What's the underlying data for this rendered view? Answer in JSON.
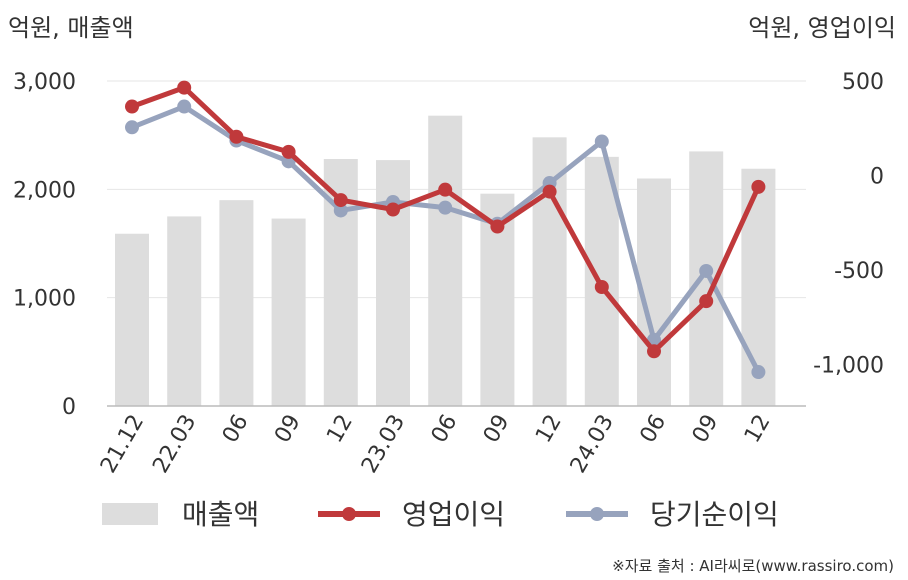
{
  "chart_data": {
    "type": "bar+line",
    "categories": [
      "21.12",
      "22.03",
      "06",
      "09",
      "12",
      "23.03",
      "06",
      "09",
      "12",
      "24.03",
      "06",
      "09",
      "12"
    ],
    "left_axis": {
      "unit_label": "억원, 매출액",
      "ticks": [
        "3,000",
        "2,000",
        "1,000",
        "0"
      ],
      "tick_values": [
        3000,
        2000,
        1000,
        0
      ],
      "range": [
        0,
        3000
      ]
    },
    "right_axis": {
      "unit_label": "억원, 영업이익",
      "ticks": [
        "500",
        "0",
        "-500",
        "-1,000"
      ],
      "tick_values": [
        500,
        0,
        -500,
        -1000
      ],
      "range": [
        -1200,
        500
      ]
    },
    "series": [
      {
        "name": "매출액",
        "type": "bar",
        "axis": "left",
        "color": "#dddddd",
        "values": [
          1590,
          1750,
          1900,
          1730,
          2280,
          2270,
          2680,
          1960,
          2480,
          2300,
          2100,
          2350,
          2190
        ]
      },
      {
        "name": "영업이익",
        "type": "line",
        "axis": "right",
        "color": "#c0393b",
        "values": [
          365,
          465,
          205,
          125,
          -130,
          -180,
          -75,
          -270,
          -85,
          -590,
          -930,
          -665,
          -60
        ]
      },
      {
        "name": "당기순이익",
        "type": "line",
        "axis": "right",
        "color": "#97a3bd",
        "values": [
          255,
          365,
          185,
          75,
          -185,
          -140,
          -170,
          -255,
          -40,
          180,
          -870,
          -505,
          -1040
        ]
      }
    ],
    "grid": true,
    "legend_position": "bottom"
  },
  "source_note": "※자료 출처 : AI라씨로(www.rassiro.com)"
}
